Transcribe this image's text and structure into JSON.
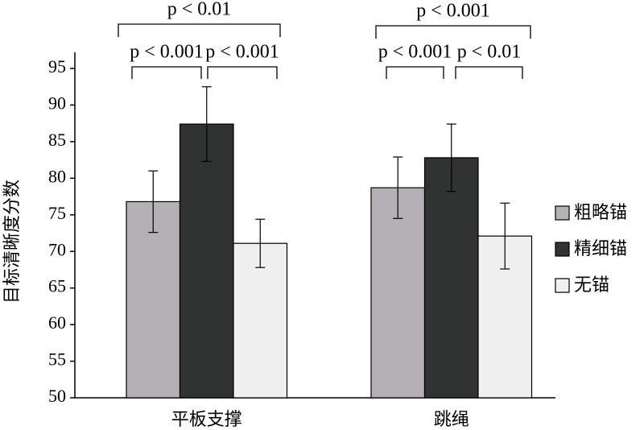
{
  "chart_data": {
    "type": "bar",
    "y_label": "目标清晰度分数",
    "categories": [
      "平板支撑",
      "跳绳"
    ],
    "series": [
      {
        "name": "粗略锚",
        "color": "#b3b1b6",
        "values": [
          76.8,
          78.7
        ],
        "errors": [
          4.2,
          4.2
        ]
      },
      {
        "name": "精细锚",
        "color": "#303332",
        "values": [
          87.4,
          82.8
        ],
        "errors": [
          5.1,
          4.6
        ]
      },
      {
        "name": "无锚",
        "color": "#f0f0f0",
        "values": [
          71.1,
          72.1
        ],
        "errors": [
          3.3,
          4.5
        ]
      }
    ],
    "ylim": [
      50,
      95
    ],
    "yticks": [
      50,
      55,
      60,
      65,
      70,
      75,
      80,
      85,
      90,
      95
    ],
    "annotations": [
      "p < 0.01",
      "p < 0.001",
      "p < 0.001",
      "p < 0.001",
      "p < 0.001",
      "p < 0.01"
    ]
  }
}
